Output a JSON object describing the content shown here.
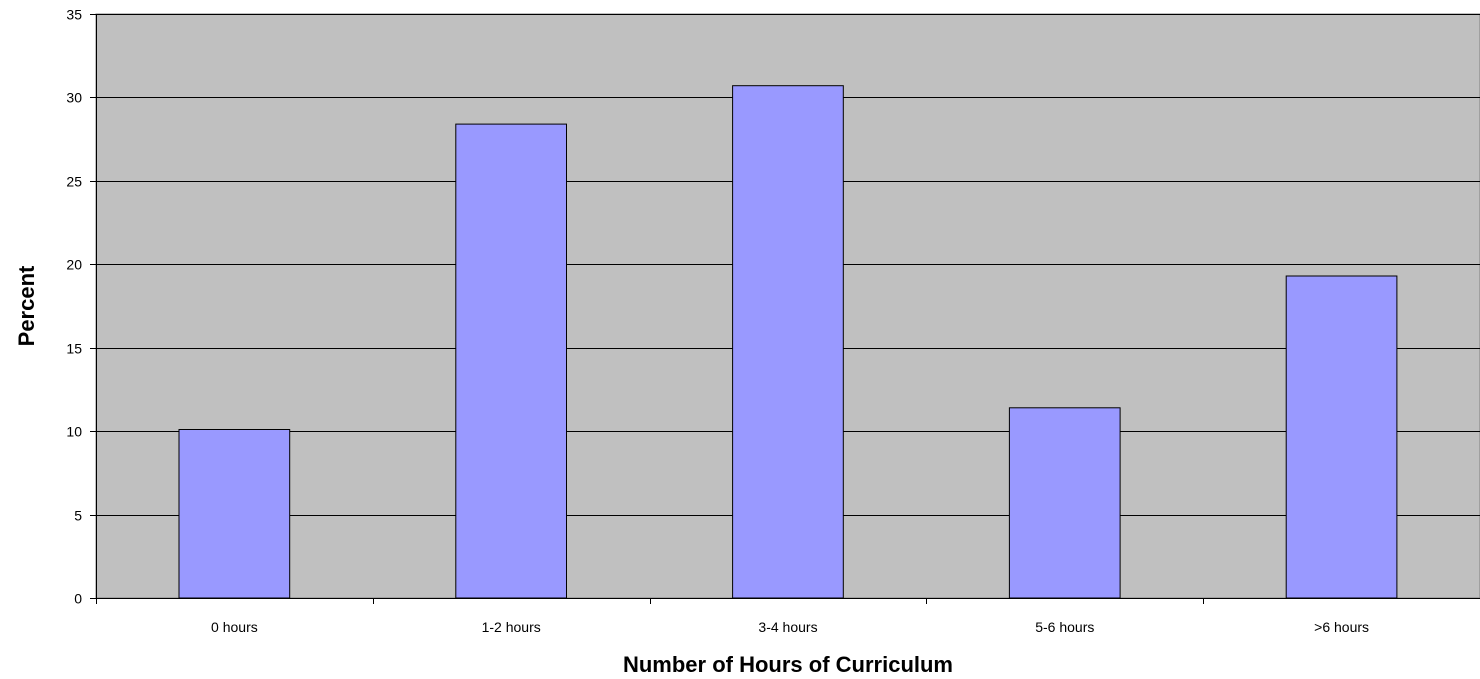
{
  "chart_data": {
    "type": "bar",
    "title": "",
    "xlabel": "Number of Hours of Curriculum",
    "ylabel": "Percent",
    "categories": [
      "0 hours",
      "1-2 hours",
      "3-4 hours",
      "5-6 hours",
      ">6 hours"
    ],
    "values": [
      10.1,
      28.4,
      30.7,
      11.4,
      19.3
    ],
    "ylim": [
      0,
      35
    ],
    "yticks": [
      "0",
      "5",
      "10",
      "15",
      "20",
      "25",
      "30",
      "35"
    ],
    "grid": true,
    "legend": "none",
    "colors": {
      "plot_background": "#c0c0c0",
      "bar_fill": "#9999ff",
      "bar_stroke": "#000000",
      "gridline": "#000000"
    }
  }
}
